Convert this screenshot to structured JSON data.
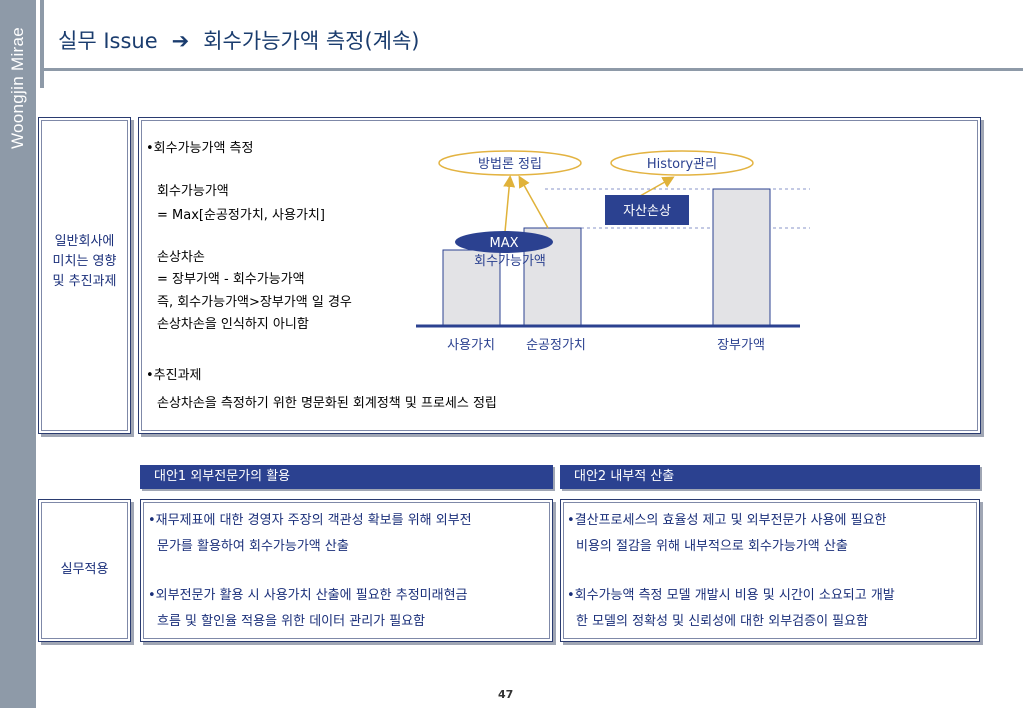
{
  "sidebar": {
    "brand": "Woongjin Mirae"
  },
  "header": {
    "title_left": "실무 Issue",
    "arrow": "➔",
    "title_right": "회수가능가액 측정(계속)"
  },
  "section1": {
    "label": [
      "일반회사에",
      "미치는 영향",
      "및 추진과제"
    ],
    "lines": [
      "•회수가능가액 측정",
      "회수가능가액",
      "= Max[순공정가치, 사용가치]",
      "손상차손",
      "= 장부가액 - 회수가능가액",
      "즉, 회수가능가액>장부가액 일 경우",
      "손상차손을 인식하지 아니함",
      "•추진과제",
      "손상차손을 측정하기 위한 명문화된 회계정책 및 프로세스 정립"
    ],
    "diagram": {
      "ellipse_left": "방법론 정립",
      "ellipse_right": "History관리",
      "impairment_box": "자산손상",
      "max_badge": "MAX",
      "recoverable_label": "회수가능가액",
      "bars": [
        "사용가치",
        "순공정가치",
        "장부가액"
      ],
      "colors": {
        "accent": "#2b4190",
        "ellipse_stroke": "#e3b341",
        "bar_fill": "#e3e3e6",
        "arrow": "#e0b23a"
      }
    }
  },
  "section2": {
    "label": "실무적용",
    "alt1": {
      "header": "대안1 외부전문가의 활용",
      "bullets": [
        [
          "•재무제표에 대한 경영자 주장의 객관성 확보를 위해 외부전",
          "문가를 활용하여 회수가능가액 산출"
        ],
        [
          "•외부전문가  활용 시 사용가치 산출에 필요한 추정미래현금",
          "흐름 및 할인율 적용을 위한 데이터 관리가 필요함"
        ]
      ]
    },
    "alt2": {
      "header": "대안2 내부적 산출",
      "bullets": [
        [
          "•결산프로세스의 효율성 제고 및 외부전문가 사용에 필요한",
          "비용의 절감을 위해 내부적으로 회수가능가액 산출"
        ],
        [
          "•회수가능액 측정 모델 개발시 비용 및 시간이 소요되고 개발",
          "한 모델의 정확성 및 신뢰성에 대한 외부검증이 필요함"
        ]
      ]
    }
  },
  "page_number": "47"
}
